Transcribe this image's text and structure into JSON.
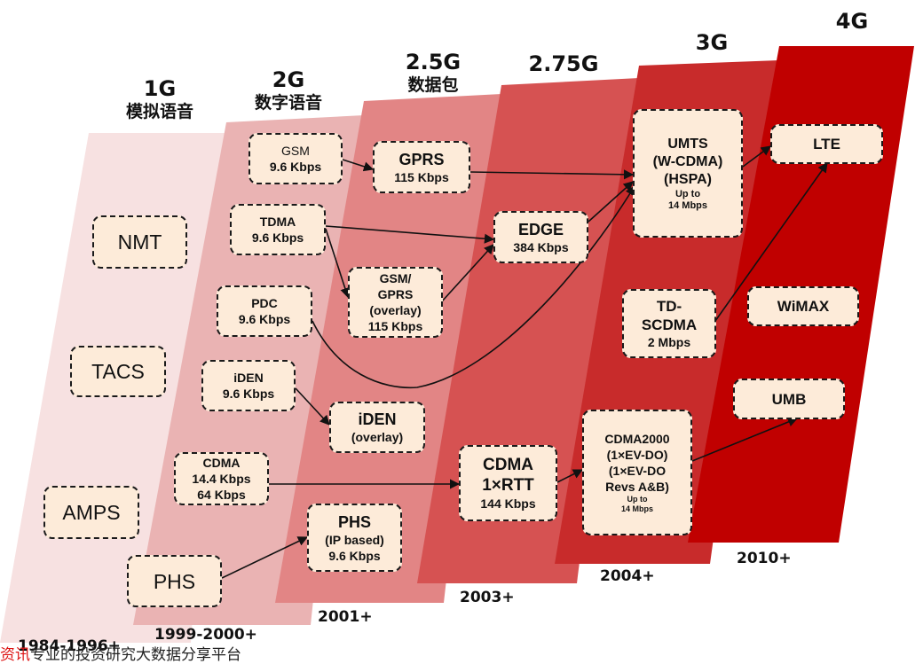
{
  "colors": {
    "band_1g": "#f7e1e1",
    "band_2g": "#eab3b3",
    "band_25g": "#e28585",
    "band_275g": "#d65252",
    "band_3g": "#c82b2b",
    "band_4g": "#c00000",
    "box_fill": "#fdebd9",
    "box_border": "#1a1a1a"
  },
  "generations": [
    {
      "name": "1G",
      "subtitle": "模拟语音"
    },
    {
      "name": "2G",
      "subtitle": "数字语音"
    },
    {
      "name": "2.5G",
      "subtitle": "数据包"
    },
    {
      "name": "2.75G",
      "subtitle": ""
    },
    {
      "name": "3G",
      "subtitle": ""
    },
    {
      "name": "4G",
      "subtitle": ""
    }
  ],
  "years": {
    "g1": "1984-1996+",
    "g2": "1999-2000+",
    "g25": "2001+",
    "g275": "2003+",
    "g3": "2004+",
    "g4": "2010+"
  },
  "boxes": {
    "nmt": {
      "l1": "NMT"
    },
    "tacs": {
      "l1": "TACS"
    },
    "amps": {
      "l1": "AMPS"
    },
    "phs1": {
      "l1": "PHS"
    },
    "gsm": {
      "l1": "GSM",
      "l2": "9.6 Kbps"
    },
    "tdma": {
      "l1": "TDMA",
      "l2": "9.6 Kbps"
    },
    "pdc": {
      "l1": "PDC",
      "l2": "9.6 Kbps"
    },
    "iden": {
      "l1": "iDEN",
      "l2": "9.6 Kbps"
    },
    "cdma": {
      "l1": "CDMA",
      "l2": "14.4 Kbps",
      "l3": "64 Kbps"
    },
    "gprs": {
      "l1": "GPRS",
      "l2": "115 Kbps"
    },
    "gsmgprs": {
      "l1": "GSM/",
      "l2": "GPRS",
      "l3": "(overlay)",
      "l4": "115 Kbps"
    },
    "idenov": {
      "l1": "iDEN",
      "l2": "(overlay)"
    },
    "phsip": {
      "l1": "PHS",
      "l2": "(IP based)",
      "l3": "9.6 Kbps"
    },
    "edge": {
      "l1": "EDGE",
      "l2": "384 Kbps"
    },
    "cdma1x": {
      "l1": "CDMA",
      "l2": "1×RTT",
      "l3": "144 Kbps"
    },
    "umts": {
      "l1": "UMTS",
      "l2": "(W-CDMA)",
      "l3": "(HSPA)",
      "l4": "Up to",
      "l5": "14 Mbps"
    },
    "tdscdma": {
      "l1": "TD-",
      "l2": "SCDMA",
      "l3": "2 Mbps"
    },
    "cdma2000": {
      "l1": "CDMA2000",
      "l2": "(1×EV-DO)",
      "l3": "(1×EV-DO",
      "l4": "Revs A&B)",
      "l5": "Up to",
      "l6": "14 Mbps"
    },
    "lte": {
      "l1": "LTE"
    },
    "wimax": {
      "l1": "WiMAX"
    },
    "umb": {
      "l1": "UMB"
    }
  },
  "footer": {
    "mark": "资讯",
    "text": "专业的投资研究大数据分享平台"
  }
}
